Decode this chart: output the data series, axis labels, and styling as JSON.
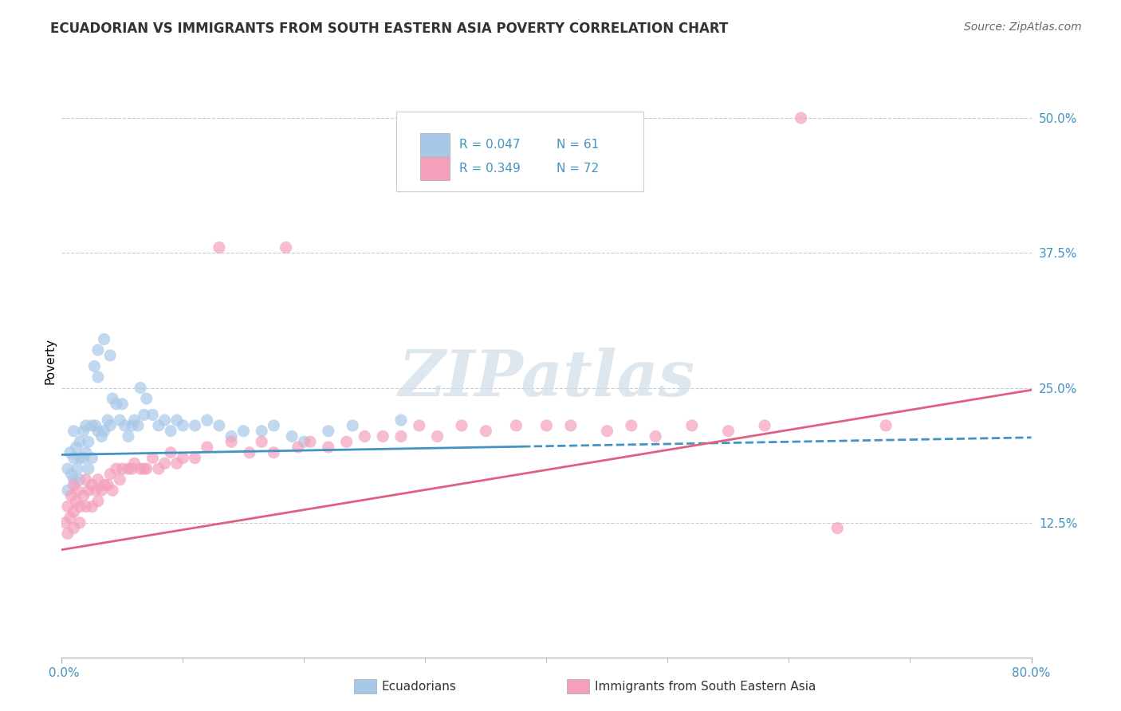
{
  "title": "ECUADORIAN VS IMMIGRANTS FROM SOUTH EASTERN ASIA POVERTY CORRELATION CHART",
  "source": "Source: ZipAtlas.com",
  "ylabel": "Poverty",
  "legend_label1": "Ecuadorians",
  "legend_label2": "Immigrants from South Eastern Asia",
  "watermark": "ZIPatlas",
  "r1": "0.047",
  "n1": "61",
  "r2": "0.349",
  "n2": "72",
  "color_blue": "#A8C8E8",
  "color_pink": "#F4A0BB",
  "color_blue_text": "#4393C3",
  "color_pink_text": "#4393C3",
  "color_line_blue": "#4393C3",
  "color_line_pink": "#E06080",
  "xmin": 0.0,
  "xmax": 0.8,
  "ymin": 0.0,
  "ymax": 0.55,
  "yticks": [
    0.125,
    0.25,
    0.375,
    0.5
  ],
  "ytick_labels": [
    "12.5%",
    "25.0%",
    "37.5%",
    "50.0%"
  ],
  "blue_x": [
    0.005,
    0.005,
    0.007,
    0.008,
    0.01,
    0.01,
    0.01,
    0.012,
    0.013,
    0.015,
    0.015,
    0.015,
    0.018,
    0.018,
    0.02,
    0.02,
    0.022,
    0.022,
    0.025,
    0.025,
    0.027,
    0.028,
    0.03,
    0.03,
    0.03,
    0.033,
    0.035,
    0.035,
    0.038,
    0.04,
    0.04,
    0.042,
    0.045,
    0.048,
    0.05,
    0.052,
    0.055,
    0.058,
    0.06,
    0.063,
    0.065,
    0.068,
    0.07,
    0.075,
    0.08,
    0.085,
    0.09,
    0.095,
    0.1,
    0.11,
    0.12,
    0.13,
    0.14,
    0.15,
    0.165,
    0.175,
    0.19,
    0.2,
    0.22,
    0.24,
    0.28
  ],
  "blue_y": [
    0.175,
    0.155,
    0.19,
    0.17,
    0.21,
    0.185,
    0.165,
    0.195,
    0.175,
    0.2,
    0.185,
    0.165,
    0.21,
    0.185,
    0.215,
    0.19,
    0.2,
    0.175,
    0.215,
    0.185,
    0.27,
    0.215,
    0.285,
    0.26,
    0.21,
    0.205,
    0.295,
    0.21,
    0.22,
    0.28,
    0.215,
    0.24,
    0.235,
    0.22,
    0.235,
    0.215,
    0.205,
    0.215,
    0.22,
    0.215,
    0.25,
    0.225,
    0.24,
    0.225,
    0.215,
    0.22,
    0.21,
    0.22,
    0.215,
    0.215,
    0.22,
    0.215,
    0.205,
    0.21,
    0.21,
    0.215,
    0.205,
    0.2,
    0.21,
    0.215,
    0.22
  ],
  "pink_x": [
    0.003,
    0.005,
    0.005,
    0.007,
    0.008,
    0.01,
    0.01,
    0.01,
    0.012,
    0.013,
    0.015,
    0.015,
    0.018,
    0.02,
    0.02,
    0.022,
    0.025,
    0.025,
    0.028,
    0.03,
    0.03,
    0.033,
    0.035,
    0.038,
    0.04,
    0.042,
    0.045,
    0.048,
    0.05,
    0.055,
    0.058,
    0.06,
    0.065,
    0.068,
    0.07,
    0.075,
    0.08,
    0.085,
    0.09,
    0.095,
    0.1,
    0.11,
    0.12,
    0.13,
    0.14,
    0.155,
    0.165,
    0.175,
    0.185,
    0.195,
    0.205,
    0.22,
    0.235,
    0.25,
    0.265,
    0.28,
    0.295,
    0.31,
    0.33,
    0.35,
    0.375,
    0.4,
    0.42,
    0.45,
    0.47,
    0.49,
    0.52,
    0.55,
    0.58,
    0.61,
    0.64,
    0.68
  ],
  "pink_y": [
    0.125,
    0.14,
    0.115,
    0.13,
    0.15,
    0.16,
    0.135,
    0.12,
    0.145,
    0.155,
    0.14,
    0.125,
    0.15,
    0.165,
    0.14,
    0.155,
    0.16,
    0.14,
    0.155,
    0.165,
    0.145,
    0.155,
    0.16,
    0.16,
    0.17,
    0.155,
    0.175,
    0.165,
    0.175,
    0.175,
    0.175,
    0.18,
    0.175,
    0.175,
    0.175,
    0.185,
    0.175,
    0.18,
    0.19,
    0.18,
    0.185,
    0.185,
    0.195,
    0.38,
    0.2,
    0.19,
    0.2,
    0.19,
    0.38,
    0.195,
    0.2,
    0.195,
    0.2,
    0.205,
    0.205,
    0.205,
    0.215,
    0.205,
    0.215,
    0.21,
    0.215,
    0.215,
    0.215,
    0.21,
    0.215,
    0.205,
    0.215,
    0.21,
    0.215,
    0.5,
    0.12,
    0.215
  ]
}
